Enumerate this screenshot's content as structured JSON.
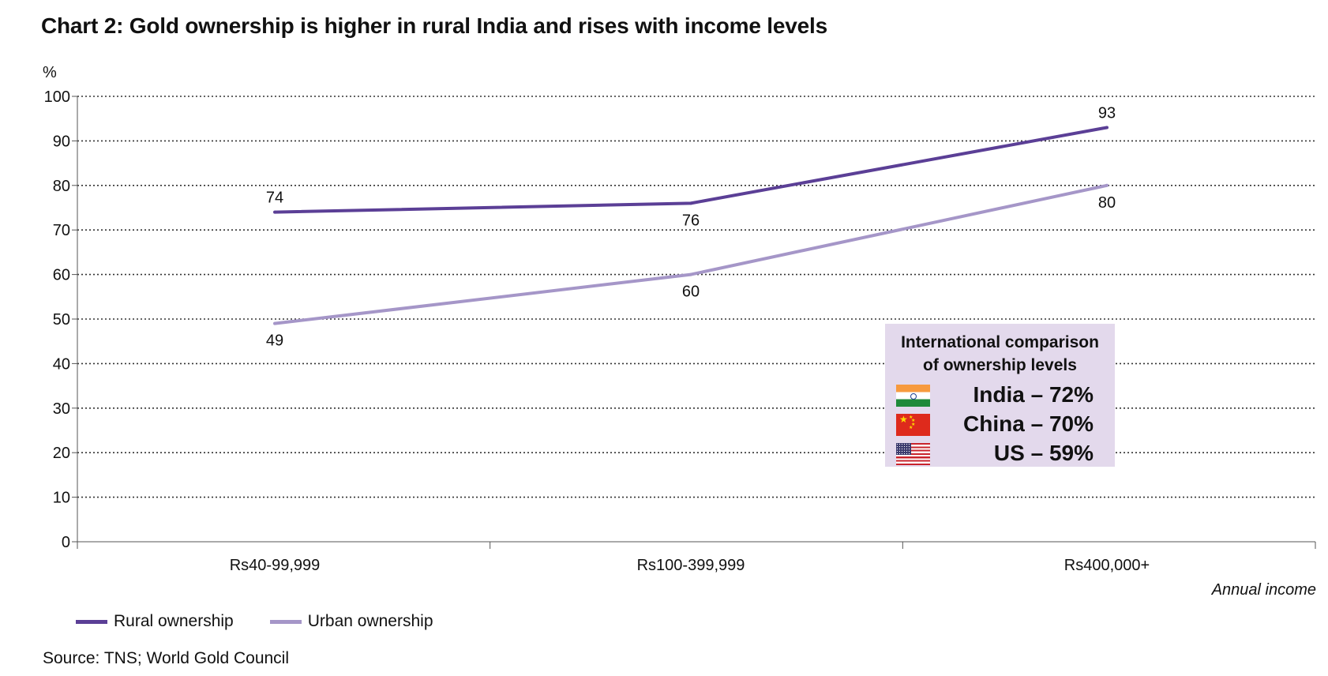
{
  "chart_data": {
    "type": "line",
    "title": "Chart 2: Gold ownership is higher in rural India and rises with income levels",
    "ylabel": "%",
    "xlabel": "Annual income",
    "ylim": [
      0,
      100
    ],
    "yticks": [
      0,
      10,
      20,
      30,
      40,
      50,
      60,
      70,
      80,
      90,
      100
    ],
    "grid": true,
    "categories": [
      "Rs40-99,999",
      "Rs100-399,999",
      "Rs400,000+"
    ],
    "series": [
      {
        "name": "Rural ownership",
        "values": [
          74,
          76,
          93
        ],
        "color": "#5b3f96"
      },
      {
        "name": "Urban ownership",
        "values": [
          49,
          60,
          80
        ],
        "color": "#a596c8"
      }
    ],
    "legend_position": "bottom-left",
    "annotation": {
      "title_line1": "International comparison",
      "title_line2": "of ownership levels",
      "background": "#e3d9ec",
      "rows": [
        {
          "flag_icon": "india-flag-icon",
          "text": "India – 72%"
        },
        {
          "flag_icon": "china-flag-icon",
          "text": "China – 70%"
        },
        {
          "flag_icon": "us-flag-icon",
          "text": "US – 59%"
        }
      ]
    },
    "source": "Source: TNS; World Gold Council"
  }
}
